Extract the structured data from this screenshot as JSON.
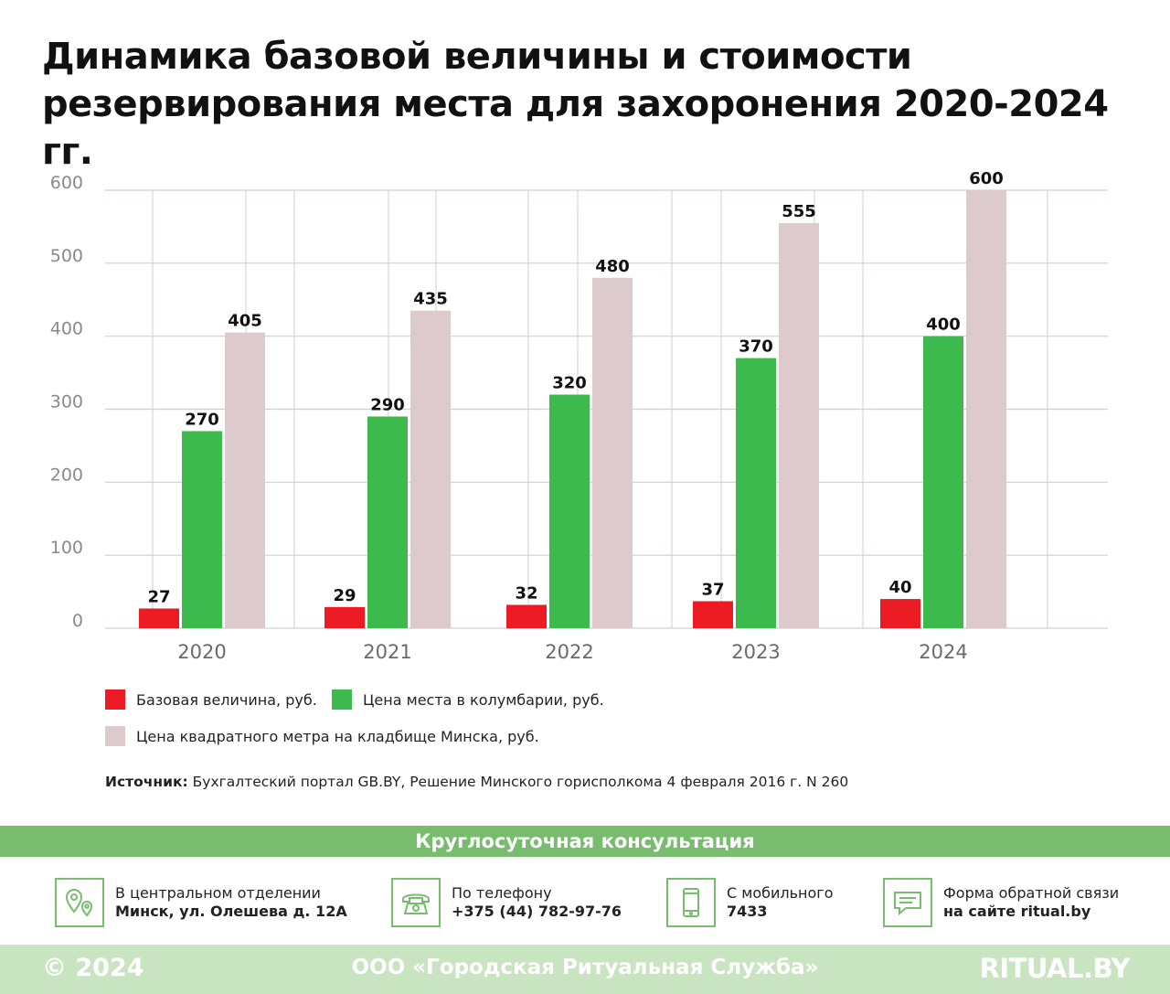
{
  "header": {
    "title_line1": "Динамика базовой величины и стоимости",
    "title_line2": "резервирования места для захоронения 2020-2024 гг."
  },
  "chart_data": {
    "type": "bar",
    "categories": [
      "2020",
      "2021",
      "2022",
      "2023",
      "2024"
    ],
    "series": [
      {
        "name": "Базовая величина, руб.",
        "values": [
          27,
          29,
          32,
          37,
          40
        ],
        "color": "#ed1c24"
      },
      {
        "name": "Цена места в колумбарии, руб.",
        "values": [
          270,
          290,
          320,
          370,
          400
        ],
        "color": "#3dba4e"
      },
      {
        "name": "Цена квадратного метра на кладбище Минска, руб.",
        "values": [
          405,
          435,
          480,
          555,
          600
        ],
        "color": "#dccacc"
      }
    ],
    "yticks": [
      0,
      100,
      200,
      300,
      400,
      500,
      600
    ],
    "ylim": [
      0,
      600
    ],
    "grid": true,
    "legend_position": "bottom-left"
  },
  "source": {
    "label": "Источник:",
    "text": " Бухгалтеский портал GB.BY, Решение Минского горисполкома 4 февраля 2016 г. N 260"
  },
  "consultation": {
    "title": "Круглосуточная консультация",
    "items": [
      {
        "icon": "map-pin-icon",
        "line1": "В центральном отделении",
        "line2": "Минск, ул. Олешева д. 12А"
      },
      {
        "icon": "telephone-icon",
        "line1": "По телефону",
        "line2": "+375 (44) 782-97-76"
      },
      {
        "icon": "mobile-phone-icon",
        "line1": "С мобильного",
        "line2": "7433"
      },
      {
        "icon": "chat-bubble-icon",
        "line1": "Форма обратной связи",
        "line2": "на сайте ritual.by"
      }
    ]
  },
  "footer": {
    "copyright": "© 2024",
    "company": "ООО «Городская Ритуальная Служба»",
    "site": "RITUAL.BY"
  },
  "colors": {
    "accent_green": "#78bd6e",
    "footer_green": "#c9e4c0",
    "grid": "#c8d6c4"
  }
}
